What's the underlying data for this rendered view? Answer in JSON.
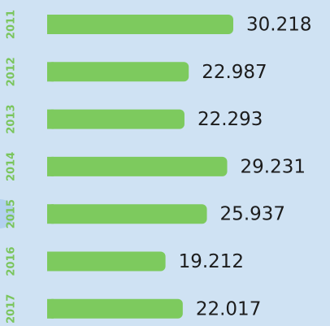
{
  "chart_data": {
    "type": "bar",
    "orientation": "horizontal",
    "categories": [
      "2011",
      "2012",
      "2013",
      "2014",
      "2015",
      "2016",
      "2017"
    ],
    "values": [
      30.218,
      22.987,
      22.293,
      29.231,
      25.937,
      19.212,
      22.017
    ],
    "color": "#7dca5e"
  }
}
